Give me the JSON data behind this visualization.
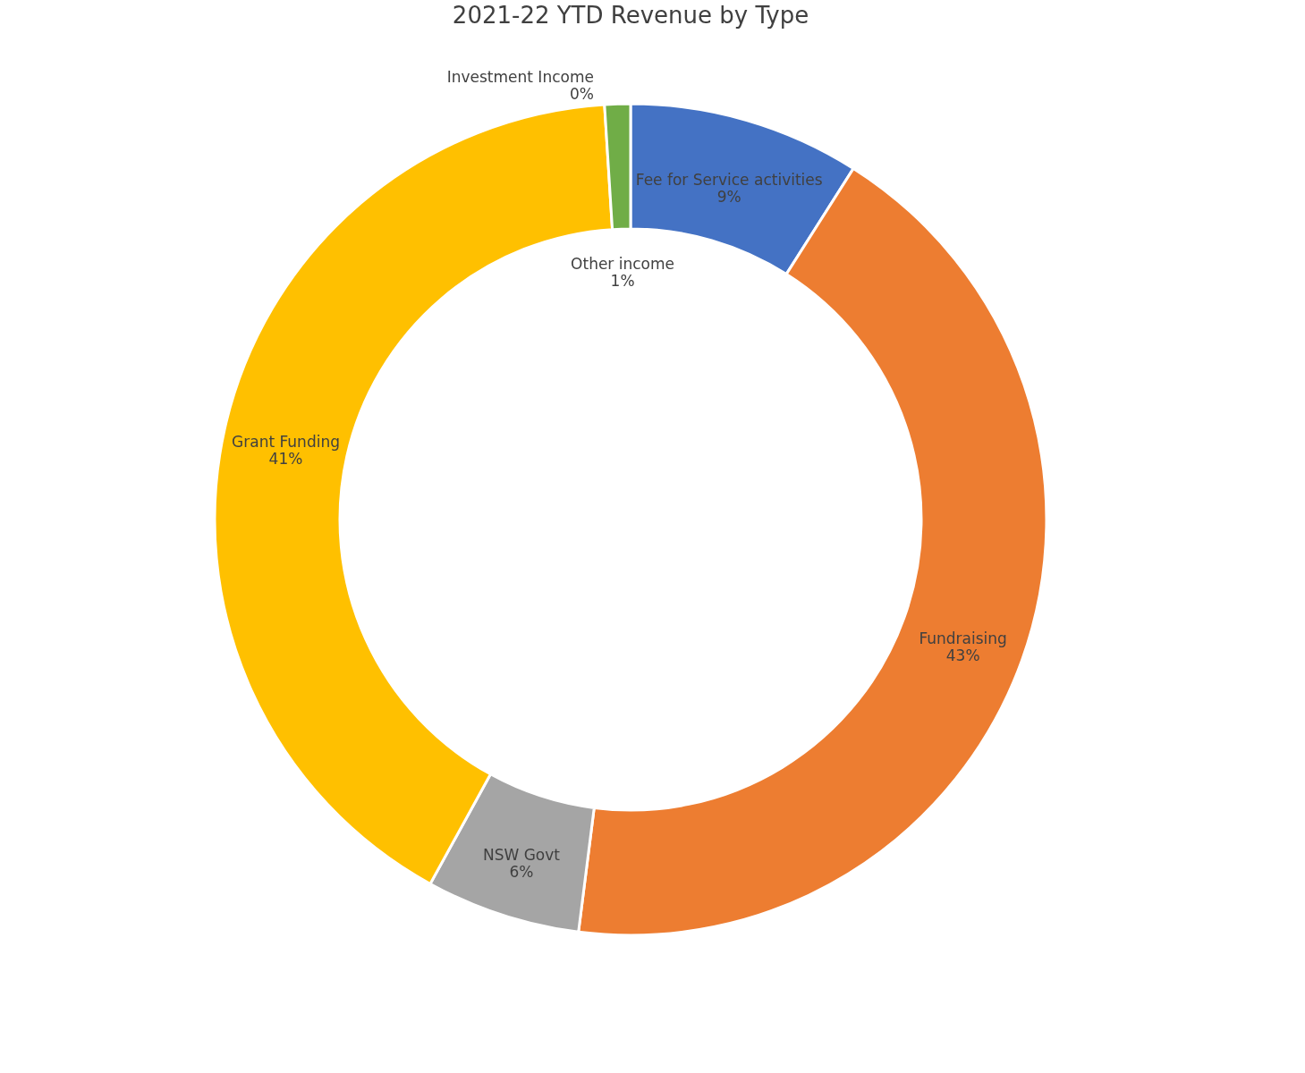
{
  "chart_data": {
    "type": "donut",
    "title": "2021-22 YTD Revenue by Type",
    "categories": [
      "Fee for Service activities",
      "Fundraising",
      "NSW Govt",
      "Grant Funding",
      "Investment Income",
      "Other income"
    ],
    "values": [
      9,
      43,
      6,
      41,
      0,
      1
    ],
    "value_labels": [
      "9%",
      "43%",
      "6%",
      "41%",
      "0%",
      "1%"
    ],
    "colors": [
      "#4472c4",
      "#ed7d31",
      "#a5a5a5",
      "#ffc000",
      "#5b9bd5",
      "#70ad47"
    ],
    "legend": false
  }
}
